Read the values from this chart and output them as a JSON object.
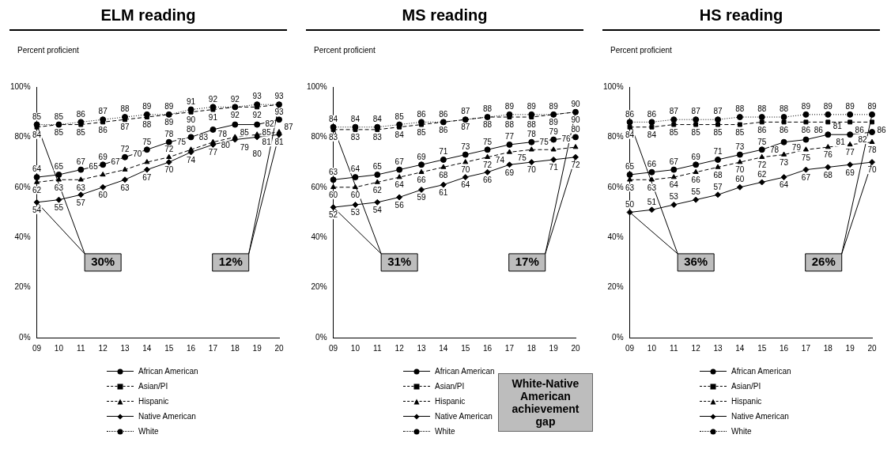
{
  "chart_data": [
    {
      "type": "line",
      "title": "ELM reading",
      "ylabel": "Percent proficient",
      "categories": [
        "09",
        "10",
        "11",
        "12",
        "13",
        "14",
        "15",
        "16",
        "17",
        "18",
        "19",
        "20"
      ],
      "series": [
        {
          "name": "African American",
          "color": "#000000",
          "marker": "circle",
          "line_style": "solid",
          "values": [
            64,
            65,
            67,
            69,
            72,
            75,
            78,
            80,
            83,
            85,
            85,
            87
          ]
        },
        {
          "name": "Asian/PI",
          "color": "#000000",
          "marker": "square",
          "line_style": "dashed",
          "values": [
            84,
            85,
            85,
            86,
            87,
            88,
            89,
            90,
            91,
            92,
            92,
            93
          ]
        },
        {
          "name": "Hispanic",
          "color": "#000000",
          "marker": "triangle",
          "line_style": "dashed",
          "values": [
            62,
            63,
            63,
            65,
            67,
            70,
            72,
            75,
            78,
            80,
            81,
            82
          ]
        },
        {
          "name": "Native American",
          "color": "#000000",
          "marker": "diamond",
          "line_style": "solid",
          "values": [
            54,
            55,
            57,
            60,
            63,
            67,
            70,
            74,
            77,
            79,
            80,
            81
          ]
        },
        {
          "name": "White",
          "color": "#000000",
          "marker": "circle",
          "line_style": "dotted",
          "values": [
            85,
            85,
            86,
            87,
            88,
            89,
            89,
            91,
            92,
            92,
            93,
            93
          ]
        }
      ],
      "ylim": [
        0,
        100
      ],
      "yticks": [
        {
          "value": 0,
          "label": "0%"
        },
        {
          "value": 20,
          "label": "20%"
        },
        {
          "value": 40,
          "label": "40%"
        },
        {
          "value": 60,
          "label": "60%"
        },
        {
          "value": 80,
          "label": "80%"
        },
        {
          "value": 100,
          "label": "100%"
        }
      ],
      "grid": false,
      "legend": "bottom",
      "data_labels": true,
      "annotations": [
        {
          "text": "30%",
          "x": "09",
          "y": 54
        },
        {
          "text": "12%",
          "x": "20",
          "y": 81
        }
      ]
    },
    {
      "type": "line",
      "title": "MS reading",
      "ylabel": "Percent proficient",
      "categories": [
        "09",
        "10",
        "11",
        "12",
        "13",
        "14",
        "15",
        "16",
        "17",
        "18",
        "19",
        "20"
      ],
      "series": [
        {
          "name": "African American",
          "color": "#000000",
          "marker": "circle",
          "line_style": "solid",
          "values": [
            63,
            64,
            65,
            67,
            69,
            71,
            73,
            75,
            77,
            78,
            79,
            80
          ]
        },
        {
          "name": "Asian/PI",
          "color": "#000000",
          "marker": "square",
          "line_style": "dashed",
          "values": [
            83,
            83,
            83,
            84,
            85,
            86,
            87,
            88,
            88,
            88,
            89,
            90
          ]
        },
        {
          "name": "Hispanic",
          "color": "#000000",
          "marker": "triangle",
          "line_style": "dashed",
          "values": [
            60,
            60,
            62,
            64,
            66,
            68,
            70,
            72,
            74,
            75,
            75,
            76
          ]
        },
        {
          "name": "Native American",
          "color": "#000000",
          "marker": "diamond",
          "line_style": "solid",
          "values": [
            52,
            53,
            54,
            56,
            59,
            61,
            64,
            66,
            69,
            70,
            71,
            72
          ]
        },
        {
          "name": "White",
          "color": "#000000",
          "marker": "circle",
          "line_style": "dotted",
          "values": [
            84,
            84,
            84,
            85,
            86,
            86,
            87,
            88,
            89,
            89,
            89,
            90
          ]
        }
      ],
      "ylim": [
        0,
        100
      ],
      "yticks": [
        {
          "value": 0,
          "label": "0%"
        },
        {
          "value": 20,
          "label": "20%"
        },
        {
          "value": 40,
          "label": "40%"
        },
        {
          "value": 60,
          "label": "60%"
        },
        {
          "value": 80,
          "label": "80%"
        },
        {
          "value": 100,
          "label": "100%"
        }
      ],
      "grid": false,
      "legend": "bottom",
      "data_labels": true,
      "annotations": [
        {
          "text": "31%",
          "x": "09",
          "y": 52
        },
        {
          "text": "17%",
          "x": "20",
          "y": 72
        }
      ]
    },
    {
      "type": "line",
      "title": "HS reading",
      "ylabel": "Percent proficient",
      "categories": [
        "09",
        "10",
        "11",
        "12",
        "13",
        "14",
        "15",
        "16",
        "17",
        "18",
        "19",
        "20"
      ],
      "series": [
        {
          "name": "African American",
          "color": "#000000",
          "marker": "circle",
          "line_style": "solid",
          "values": [
            65,
            66,
            67,
            69,
            71,
            73,
            75,
            78,
            79,
            81,
            81,
            82
          ]
        },
        {
          "name": "Asian/PI",
          "color": "#000000",
          "marker": "square",
          "line_style": "dashed",
          "values": [
            84,
            84,
            85,
            85,
            85,
            85,
            86,
            86,
            86,
            86,
            86,
            86
          ]
        },
        {
          "name": "Hispanic",
          "color": "#000000",
          "marker": "triangle",
          "line_style": "dashed",
          "values": [
            63,
            63,
            64,
            66,
            68,
            70,
            72,
            73,
            75,
            76,
            77,
            78
          ]
        },
        {
          "name": "Native American",
          "color": "#000000",
          "marker": "diamond",
          "line_style": "solid",
          "values": [
            50,
            51,
            53,
            55,
            57,
            60,
            62,
            64,
            67,
            68,
            69,
            70
          ]
        },
        {
          "name": "White",
          "color": "#000000",
          "marker": "circle",
          "line_style": "dotted",
          "values": [
            86,
            86,
            87,
            87,
            87,
            88,
            88,
            88,
            89,
            89,
            89,
            89
          ]
        }
      ],
      "ylim": [
        0,
        100
      ],
      "yticks": [
        {
          "value": 0,
          "label": "0%"
        },
        {
          "value": 20,
          "label": "20%"
        },
        {
          "value": 40,
          "label": "40%"
        },
        {
          "value": 60,
          "label": "60%"
        },
        {
          "value": 80,
          "label": "80%"
        },
        {
          "value": 100,
          "label": "100%"
        }
      ],
      "grid": false,
      "legend": "bottom",
      "data_labels": true,
      "annotations": [
        {
          "text": "36%",
          "x": "09",
          "y": 50
        },
        {
          "text": "26%",
          "x": "20",
          "y": 70
        },
        "White-Native American achievement gap"
      ]
    }
  ]
}
